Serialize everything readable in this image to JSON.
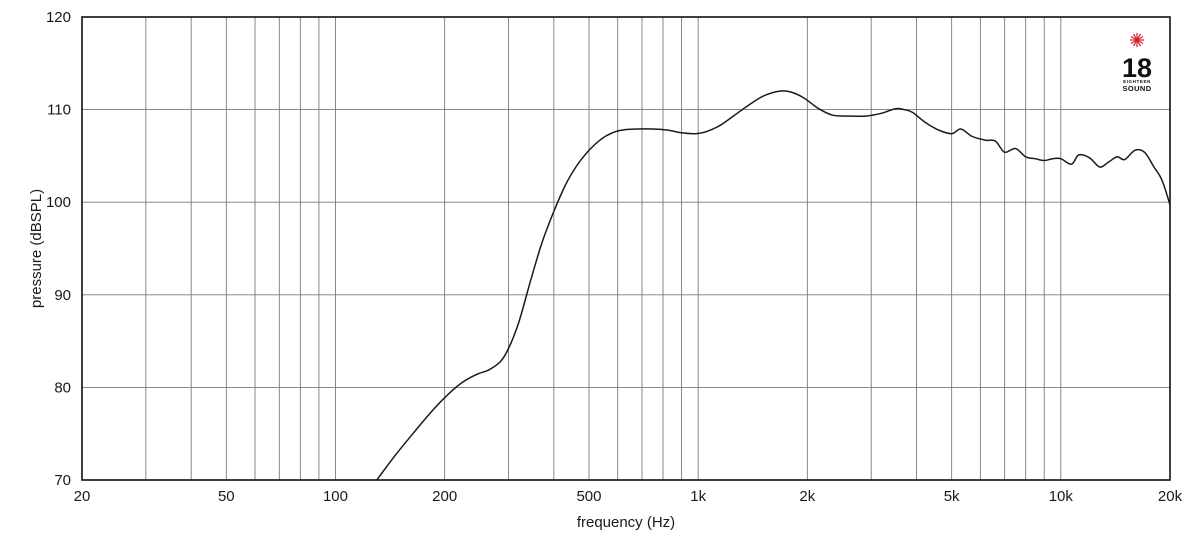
{
  "chart_data": {
    "type": "line",
    "title": "",
    "xlabel": "frequency (Hz)",
    "ylabel": "pressure (dBSPL)",
    "x_scale": "log",
    "xlim": [
      20,
      20000
    ],
    "ylim": [
      70,
      120
    ],
    "grid": true,
    "x_ticks": [
      {
        "value": 20,
        "label": "20"
      },
      {
        "value": 50,
        "label": "50"
      },
      {
        "value": 100,
        "label": "100"
      },
      {
        "value": 200,
        "label": "200"
      },
      {
        "value": 500,
        "label": "500"
      },
      {
        "value": 1000,
        "label": "1k"
      },
      {
        "value": 2000,
        "label": "2k"
      },
      {
        "value": 5000,
        "label": "5k"
      },
      {
        "value": 10000,
        "label": "10k"
      },
      {
        "value": 20000,
        "label": "20k"
      }
    ],
    "y_ticks": [
      {
        "value": 70,
        "label": "70"
      },
      {
        "value": 80,
        "label": "80"
      },
      {
        "value": 90,
        "label": "90"
      },
      {
        "value": 100,
        "label": "100"
      },
      {
        "value": 110,
        "label": "110"
      },
      {
        "value": 120,
        "label": "120"
      }
    ],
    "series": [
      {
        "color": "#1a1a1a",
        "x": [
          130,
          145,
          165,
          185,
          205,
          225,
          245,
          265,
          285,
          300,
          320,
          345,
          370,
          400,
          430,
          460,
          500,
          540,
          580,
          620,
          680,
          750,
          820,
          900,
          980,
          1050,
          1150,
          1250,
          1380,
          1520,
          1680,
          1800,
          1950,
          2150,
          2350,
          2600,
          2900,
          3200,
          3500,
          3700,
          3900,
          4200,
          4600,
          5000,
          5300,
          5700,
          6200,
          6600,
          7000,
          7500,
          8000,
          8500,
          9000,
          9500,
          10000,
          10700,
          11200,
          12000,
          12800,
          13500,
          14300,
          15000,
          16000,
          17000,
          18000,
          19000,
          20000
        ],
        "y": [
          70,
          72.5,
          75.2,
          77.5,
          79.3,
          80.6,
          81.4,
          81.9,
          82.8,
          84.2,
          87,
          91.5,
          95.5,
          99,
          101.8,
          103.8,
          105.6,
          106.8,
          107.5,
          107.8,
          107.9,
          107.9,
          107.8,
          107.5,
          107.4,
          107.6,
          108.3,
          109.3,
          110.5,
          111.5,
          112,
          111.9,
          111.3,
          110.1,
          109.4,
          109.3,
          109.3,
          109.6,
          110.1,
          110,
          109.7,
          108.7,
          107.8,
          107.4,
          107.9,
          107.1,
          106.7,
          106.6,
          105.4,
          105.8,
          104.9,
          104.7,
          104.5,
          104.7,
          104.7,
          104.1,
          105.1,
          104.8,
          103.8,
          104.3,
          104.9,
          104.6,
          105.6,
          105.4,
          103.9,
          102.4,
          99.7
        ]
      }
    ]
  },
  "logo": {
    "number": "18",
    "small_text": "EIGHTEEN",
    "word": "SOUND",
    "accent_color": "#d0202a"
  }
}
